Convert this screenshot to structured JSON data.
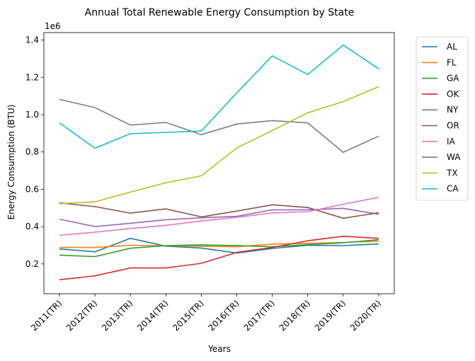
{
  "chart_data": {
    "type": "line",
    "title": "Annual Total Renewable Energy Consumption by State",
    "xlabel": "Years",
    "ylabel": "Energy Consumption (BTU)",
    "y_offset_label": "1e6",
    "categories": [
      "2011(TR)",
      "2012(TR)",
      "2013(TR)",
      "2014(TR)",
      "2015(TR)",
      "2016(TR)",
      "2017(TR)",
      "2018(TR)",
      "2019(TR)",
      "2020(TR)"
    ],
    "ylim": [
      40000,
      1440000
    ],
    "yticks": [
      200000,
      400000,
      600000,
      800000,
      1000000,
      1200000,
      1400000
    ],
    "ytick_labels": [
      "0.2",
      "0.4",
      "0.6",
      "0.8",
      "1.0",
      "1.2",
      "1.4"
    ],
    "grid": false,
    "legend_position": "outside-top-right",
    "series": [
      {
        "name": "AL",
        "color": "#1f77b4",
        "values": [
          280000,
          265000,
          337000,
          295000,
          285000,
          258000,
          283000,
          300000,
          298000,
          307000
        ]
      },
      {
        "name": "FL",
        "color": "#ff7f0e",
        "values": [
          288000,
          288000,
          300000,
          297000,
          295000,
          292000,
          306000,
          310000,
          315000,
          322000
        ]
      },
      {
        "name": "GA",
        "color": "#2ca02c",
        "values": [
          247000,
          239000,
          284000,
          298000,
          302000,
          298000,
          292000,
          303000,
          313000,
          330000
        ]
      },
      {
        "name": "OK",
        "color": "#d62728",
        "values": [
          115000,
          136000,
          178000,
          178000,
          203000,
          262000,
          288000,
          324000,
          348000,
          337000
        ]
      },
      {
        "name": "NY",
        "color": "#9467bd",
        "values": [
          440000,
          400000,
          418000,
          437000,
          447000,
          455000,
          490000,
          490000,
          498000,
          466000
        ]
      },
      {
        "name": "OR",
        "color": "#8c564b",
        "values": [
          527000,
          507000,
          472000,
          495000,
          452000,
          483000,
          517000,
          502000,
          445000,
          474000
        ]
      },
      {
        "name": "IA",
        "color": "#e377c2",
        "values": [
          353000,
          370000,
          390000,
          407000,
          430000,
          450000,
          473000,
          480000,
          520000,
          557000
        ]
      },
      {
        "name": "WA",
        "color": "#7f7f7f",
        "values": [
          1082000,
          1038000,
          944000,
          958000,
          893000,
          950000,
          968000,
          956000,
          798000,
          885000
        ]
      },
      {
        "name": "TX",
        "color": "#bcbd22",
        "values": [
          523000,
          533000,
          585000,
          635000,
          672000,
          822000,
          915000,
          1010000,
          1070000,
          1150000
        ]
      },
      {
        "name": "CA",
        "color": "#17becf",
        "values": [
          956000,
          820000,
          898000,
          905000,
          912000,
          1118000,
          1315000,
          1215000,
          1373000,
          1245000
        ]
      }
    ]
  }
}
